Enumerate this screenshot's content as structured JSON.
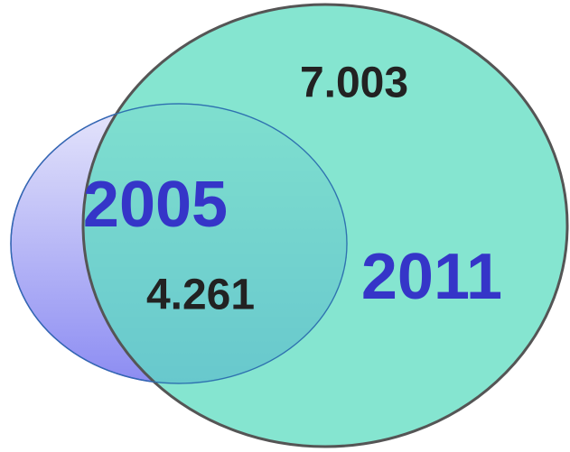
{
  "sets": [
    {
      "label": "2005",
      "value": "4.261"
    },
    {
      "label": "2011",
      "value": "7.003"
    }
  ]
}
